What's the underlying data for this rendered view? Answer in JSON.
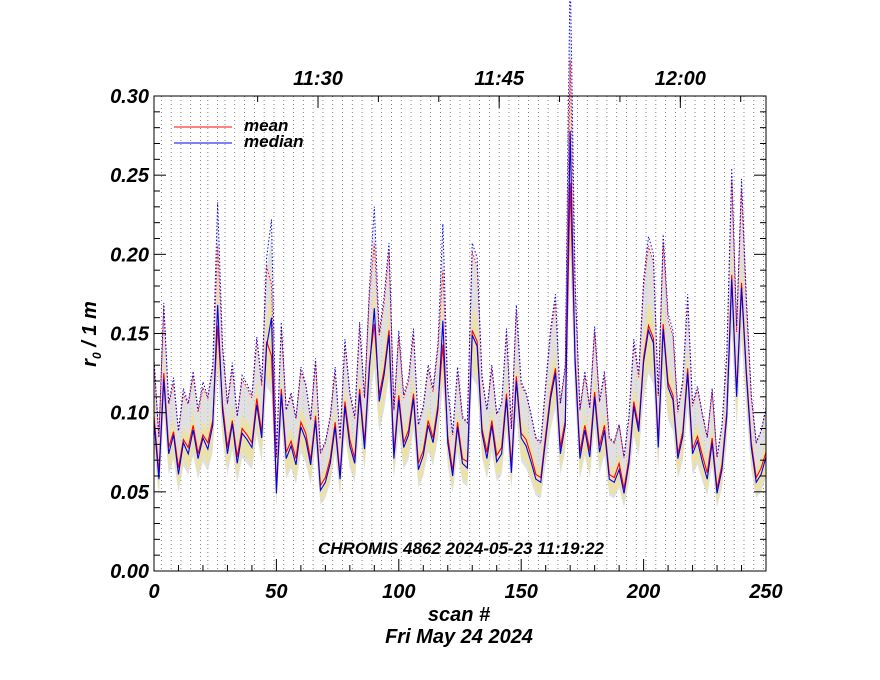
{
  "chart_data": {
    "type": "line",
    "title": "",
    "annotation": "CHROMIS 4862 2024-05-23 11:19:22",
    "xlabel": "scan #",
    "xlabel_date": "Fri May 24 2024",
    "ylabel_base": "r",
    "ylabel_sub": "0",
    "ylabel_tail": " / 1 m",
    "xlim": [
      0,
      250
    ],
    "ylim": [
      0.0,
      0.3
    ],
    "x_ticks": [
      "0",
      "50",
      "100",
      "150",
      "200",
      "250"
    ],
    "y_ticks": [
      "0.00",
      "0.05",
      "0.10",
      "0.15",
      "0.20",
      "0.25",
      "0.30"
    ],
    "top_axis": {
      "labels": [
        {
          "scan": 67,
          "text": "11:30"
        },
        {
          "scan": 141,
          "text": "11:45"
        },
        {
          "scan": 215,
          "text": "12:00"
        }
      ]
    },
    "vertical_dotted_lines_scan": [
      3,
      7,
      11,
      15,
      19,
      22,
      26,
      29,
      33,
      37,
      41,
      45,
      49,
      53,
      57,
      61,
      65,
      69,
      73,
      77,
      81,
      85,
      89,
      93,
      97,
      101,
      105,
      109,
      113,
      117,
      121,
      125,
      129,
      133,
      137,
      141,
      145,
      149,
      153,
      157,
      161,
      165,
      169,
      173,
      177,
      181,
      185,
      189,
      193,
      197,
      201,
      205,
      209,
      213,
      217,
      221,
      225,
      229,
      233,
      237,
      241,
      245,
      249
    ],
    "legend_position": "top-left",
    "series": [
      {
        "name": "mean",
        "color": "#ff0000",
        "x": [
          0,
          2,
          4,
          6,
          8,
          10,
          12,
          14,
          16,
          18,
          20,
          22,
          24,
          26,
          28,
          30,
          32,
          34,
          36,
          38,
          40,
          42,
          44,
          46,
          48,
          50,
          52,
          54,
          56,
          58,
          60,
          62,
          64,
          66,
          68,
          70,
          72,
          74,
          76,
          78,
          80,
          82,
          84,
          86,
          88,
          90,
          92,
          94,
          96,
          98,
          100,
          102,
          104,
          106,
          108,
          110,
          112,
          114,
          116,
          118,
          120,
          122,
          124,
          126,
          128,
          130,
          132,
          134,
          136,
          138,
          140,
          142,
          144,
          146,
          148,
          150,
          152,
          154,
          156,
          158,
          160,
          162,
          164,
          166,
          168,
          170,
          172,
          174,
          176,
          178,
          180,
          182,
          184,
          186,
          188,
          190,
          192,
          194,
          196,
          198,
          200,
          202,
          204,
          206,
          208,
          210,
          212,
          214,
          216,
          218,
          220,
          222,
          224,
          226,
          228,
          230,
          232,
          234,
          236,
          238,
          240,
          242,
          244,
          246,
          248,
          250
        ],
        "values": [
          0.098,
          0.062,
          0.125,
          0.078,
          0.088,
          0.065,
          0.083,
          0.078,
          0.092,
          0.074,
          0.086,
          0.081,
          0.095,
          0.155,
          0.105,
          0.078,
          0.095,
          0.072,
          0.09,
          0.086,
          0.081,
          0.109,
          0.087,
          0.145,
          0.136,
          0.052,
          0.115,
          0.075,
          0.082,
          0.071,
          0.094,
          0.087,
          0.07,
          0.098,
          0.054,
          0.059,
          0.071,
          0.094,
          0.061,
          0.107,
          0.083,
          0.071,
          0.115,
          0.081,
          0.131,
          0.156,
          0.111,
          0.127,
          0.152,
          0.075,
          0.111,
          0.081,
          0.089,
          0.112,
          0.068,
          0.076,
          0.095,
          0.084,
          0.105,
          0.143,
          0.085,
          0.063,
          0.094,
          0.071,
          0.069,
          0.152,
          0.145,
          0.09,
          0.075,
          0.095,
          0.073,
          0.078,
          0.112,
          0.066,
          0.123,
          0.087,
          0.083,
          0.073,
          0.061,
          0.059,
          0.086,
          0.112,
          0.128,
          0.078,
          0.095,
          0.245,
          0.135,
          0.075,
          0.092,
          0.076,
          0.113,
          0.079,
          0.092,
          0.061,
          0.059,
          0.068,
          0.052,
          0.071,
          0.107,
          0.091,
          0.135,
          0.155,
          0.147,
          0.082,
          0.156,
          0.119,
          0.111,
          0.074,
          0.088,
          0.128,
          0.077,
          0.085,
          0.073,
          0.062,
          0.084,
          0.052,
          0.067,
          0.101,
          0.187,
          0.113,
          0.182,
          0.126,
          0.081,
          0.059,
          0.065,
          0.075
        ]
      },
      {
        "name": "median",
        "color": "#0000ee",
        "x": [
          0,
          2,
          4,
          6,
          8,
          10,
          12,
          14,
          16,
          18,
          20,
          22,
          24,
          26,
          28,
          30,
          32,
          34,
          36,
          38,
          40,
          42,
          44,
          46,
          48,
          50,
          52,
          54,
          56,
          58,
          60,
          62,
          64,
          66,
          68,
          70,
          72,
          74,
          76,
          78,
          80,
          82,
          84,
          86,
          88,
          90,
          92,
          94,
          96,
          98,
          100,
          102,
          104,
          106,
          108,
          110,
          112,
          114,
          116,
          118,
          120,
          122,
          124,
          126,
          128,
          130,
          132,
          134,
          136,
          138,
          140,
          142,
          144,
          146,
          148,
          150,
          152,
          154,
          156,
          158,
          160,
          162,
          164,
          166,
          168,
          170,
          172,
          174,
          176,
          178,
          180,
          182,
          184,
          186,
          188,
          190,
          192,
          194,
          196,
          198,
          200,
          202,
          204,
          206,
          208,
          210,
          212,
          214,
          216,
          218,
          220,
          222,
          224,
          226,
          228,
          230,
          232,
          234,
          236,
          238,
          240,
          242,
          244,
          246,
          248,
          250
        ],
        "values": [
          0.095,
          0.058,
          0.121,
          0.074,
          0.086,
          0.061,
          0.081,
          0.074,
          0.089,
          0.071,
          0.084,
          0.077,
          0.092,
          0.168,
          0.101,
          0.074,
          0.093,
          0.068,
          0.087,
          0.083,
          0.078,
          0.105,
          0.084,
          0.142,
          0.16,
          0.049,
          0.112,
          0.071,
          0.079,
          0.067,
          0.091,
          0.083,
          0.067,
          0.095,
          0.051,
          0.056,
          0.068,
          0.091,
          0.058,
          0.104,
          0.079,
          0.068,
          0.112,
          0.077,
          0.128,
          0.166,
          0.107,
          0.124,
          0.149,
          0.071,
          0.108,
          0.078,
          0.086,
          0.109,
          0.064,
          0.073,
          0.092,
          0.081,
          0.102,
          0.158,
          0.081,
          0.06,
          0.091,
          0.068,
          0.065,
          0.149,
          0.142,
          0.087,
          0.071,
          0.092,
          0.069,
          0.074,
          0.109,
          0.062,
          0.12,
          0.084,
          0.079,
          0.069,
          0.058,
          0.056,
          0.083,
          0.109,
          0.125,
          0.074,
          0.092,
          0.278,
          0.132,
          0.071,
          0.089,
          0.072,
          0.11,
          0.075,
          0.089,
          0.058,
          0.056,
          0.064,
          0.049,
          0.068,
          0.104,
          0.088,
          0.132,
          0.152,
          0.144,
          0.078,
          0.153,
          0.116,
          0.108,
          0.071,
          0.085,
          0.125,
          0.074,
          0.082,
          0.069,
          0.058,
          0.081,
          0.049,
          0.064,
          0.098,
          0.184,
          0.11,
          0.179,
          0.123,
          0.078,
          0.056,
          0.061,
          0.072
        ]
      }
    ],
    "colors": {
      "mean": "#ff0000",
      "median": "#0000ee",
      "gray_band": "#d3d3d3",
      "yellow_band": "#ece2a0"
    }
  }
}
